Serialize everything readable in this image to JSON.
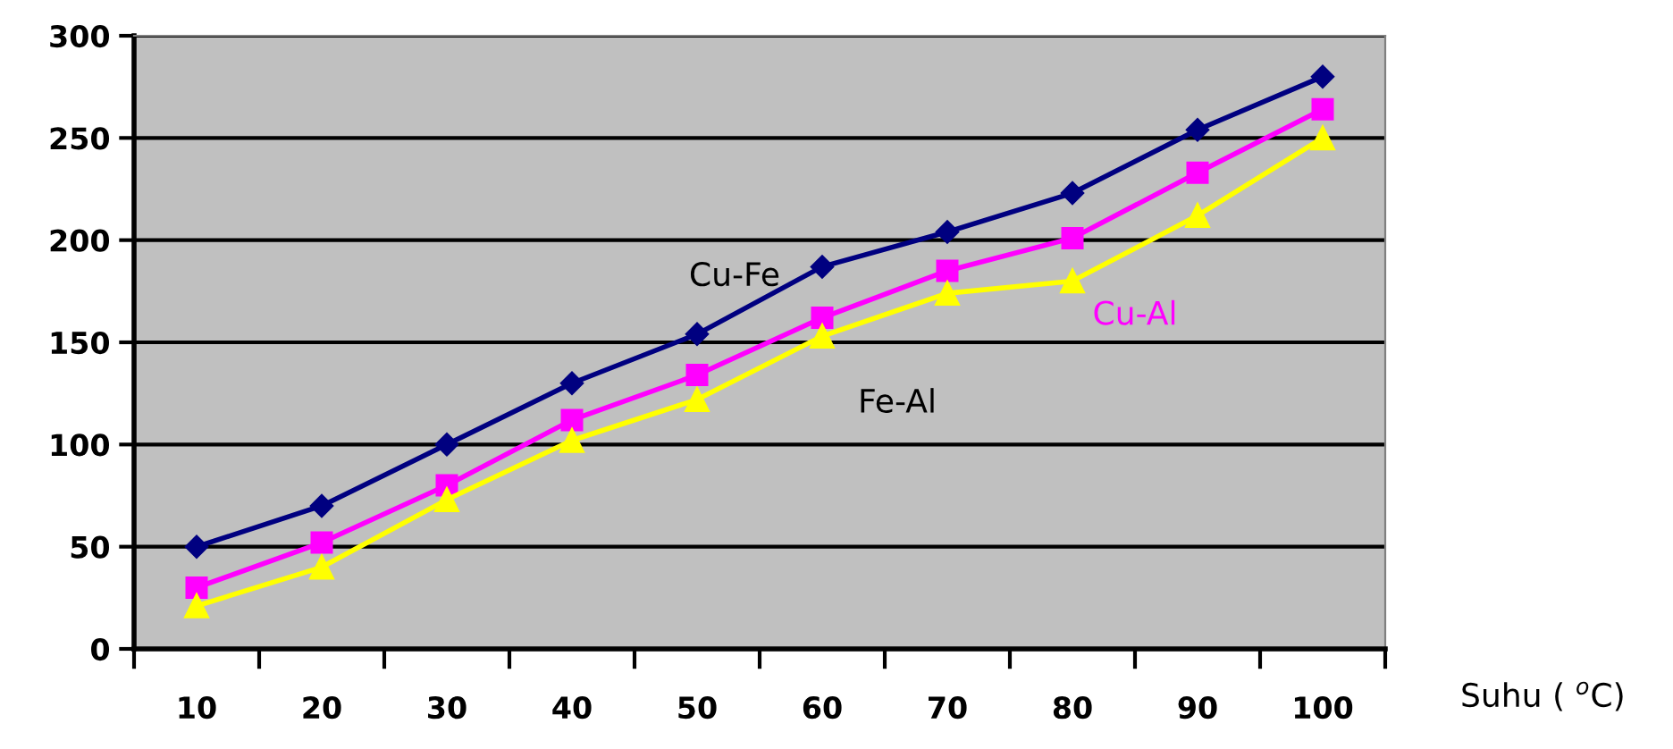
{
  "chart_data": {
    "type": "line",
    "xlabel": "Suhu ( $^{o}$C)",
    "categories": [
      "10",
      "20",
      "30",
      "40",
      "50",
      "60",
      "70",
      "80",
      "90",
      "100"
    ],
    "series": [
      {
        "name": "Cu-Fe",
        "color": "#000080",
        "marker": "diamond",
        "values": [
          50,
          70,
          100,
          130,
          154,
          187,
          204,
          223,
          254,
          280
        ]
      },
      {
        "name": "Cu-Al",
        "color": "#ff00ff",
        "marker": "square",
        "values": [
          30,
          52,
          80,
          112,
          134,
          162,
          185,
          201,
          233,
          264
        ]
      },
      {
        "name": "Fe-Al",
        "color": "#ffff00",
        "marker": "triangle",
        "values": [
          21,
          40,
          73,
          102,
          122,
          153,
          174,
          180,
          212,
          250
        ]
      }
    ],
    "ylim": [
      0,
      300
    ],
    "yticks": [
      0,
      50,
      100,
      150,
      200,
      250,
      300
    ],
    "grid": "y",
    "legend": false
  }
}
